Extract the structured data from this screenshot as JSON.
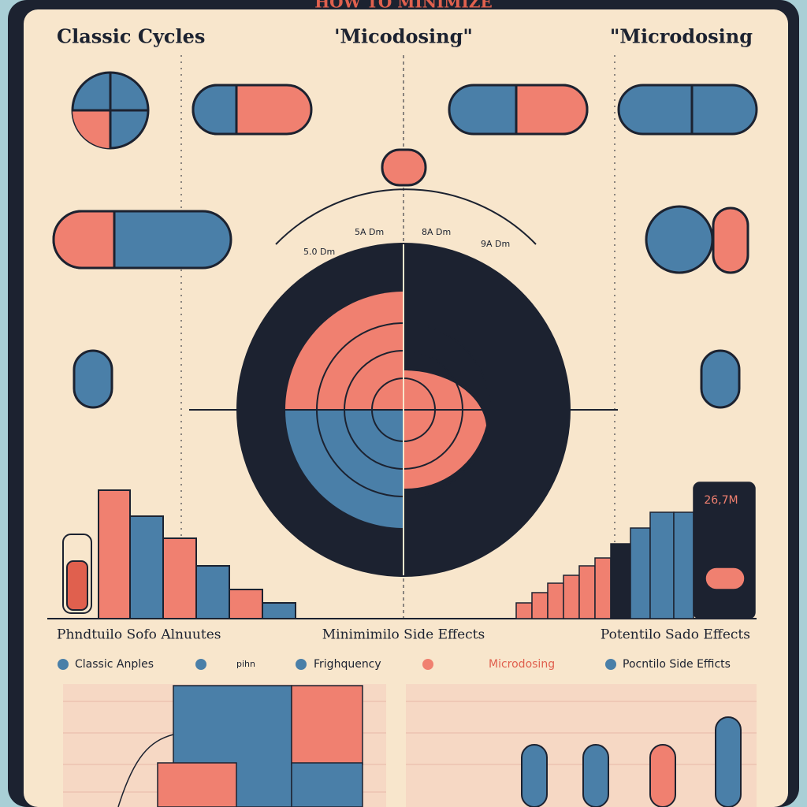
{
  "header": {
    "title": "HOW TO MINIMIZE"
  },
  "columns": [
    "Classic Cycles",
    "'Micodosing\"",
    "\"Microdosing"
  ],
  "center_labels": [
    "5.0 Dm",
    "5A Dm",
    "8A Dm",
    "9A Dm"
  ],
  "section_labels": [
    "Phndtuilo Sofo Alnuutes",
    "Minimimilo Side Effects",
    "Potentilo Sado Effects"
  ],
  "legend": [
    "Classic Anples",
    "pihn",
    "Frighquency",
    "Microdosing",
    "Pocntilo Side Efficts"
  ],
  "badge": "26,7M"
}
